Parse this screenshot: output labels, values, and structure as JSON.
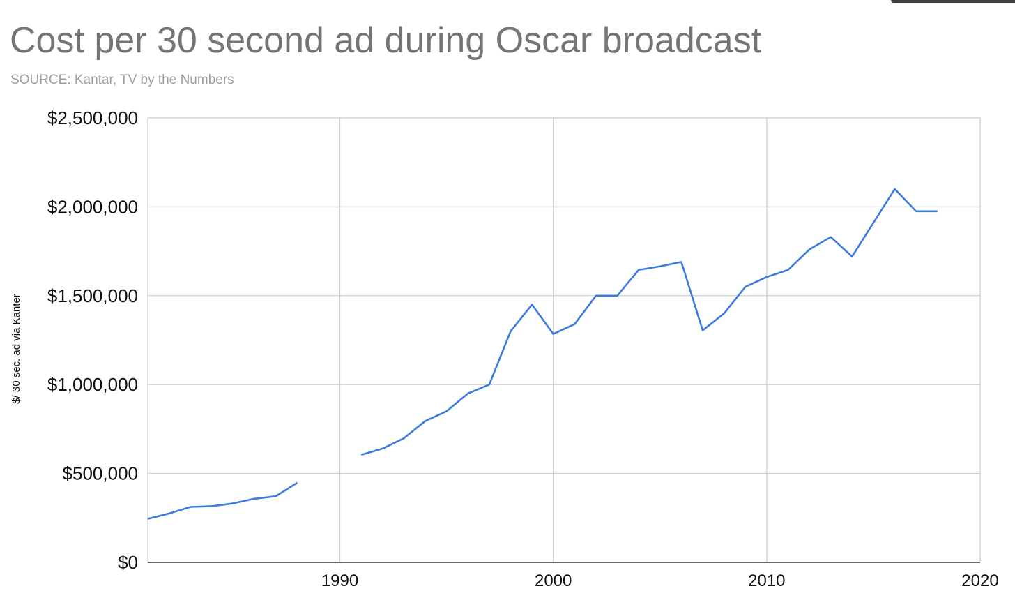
{
  "chart_data": {
    "type": "line",
    "title": "Cost per 30 second ad during Oscar broadcast",
    "subtitle": "SOURCE: Kantar, TV by the Numbers",
    "xlabel": "",
    "ylabel": "$/ 30 sec. ad via Kanter",
    "xlim": [
      1981,
      2020
    ],
    "ylim": [
      0,
      2500000
    ],
    "x_ticks": [
      1990,
      2000,
      2010,
      2020
    ],
    "y_ticks": [
      0,
      500000,
      1000000,
      1500000,
      2000000,
      2500000
    ],
    "y_tick_labels": [
      "$0",
      "$500,000",
      "$1,000,000",
      "$1,500,000",
      "$2,000,000",
      "$2,500,000"
    ],
    "x_tick_labels": [
      "1990",
      "2000",
      "2010",
      "2020"
    ],
    "grid": true,
    "legend": "none",
    "color": "#3a7bdc",
    "series": [
      {
        "points": [
          [
            1981,
            245000
          ],
          [
            1982,
            275000
          ],
          [
            1983,
            312000
          ],
          [
            1984,
            316000
          ],
          [
            1985,
            332000
          ],
          [
            1986,
            358000
          ],
          [
            1987,
            372000
          ],
          [
            1988,
            448000
          ],
          [
            1989,
            null
          ],
          [
            1990,
            null
          ],
          [
            1991,
            605000
          ],
          [
            1992,
            640000
          ],
          [
            1993,
            698000
          ],
          [
            1994,
            795000
          ],
          [
            1995,
            850000
          ],
          [
            1996,
            950000
          ],
          [
            1997,
            1000000
          ],
          [
            1998,
            1300000
          ],
          [
            1999,
            1450000
          ],
          [
            2000,
            1285000
          ],
          [
            2001,
            1340000
          ],
          [
            2002,
            1500000
          ],
          [
            2003,
            1500000
          ],
          [
            2004,
            1645000
          ],
          [
            2005,
            1665000
          ],
          [
            2006,
            1690000
          ],
          [
            2007,
            1305000
          ],
          [
            2008,
            1400000
          ],
          [
            2009,
            1550000
          ],
          [
            2010,
            1605000
          ],
          [
            2011,
            1645000
          ],
          [
            2012,
            1760000
          ],
          [
            2013,
            1830000
          ],
          [
            2014,
            1720000
          ],
          [
            2015,
            1910000
          ],
          [
            2016,
            2100000
          ],
          [
            2017,
            1975000
          ],
          [
            2018,
            1975000
          ]
        ]
      }
    ]
  }
}
